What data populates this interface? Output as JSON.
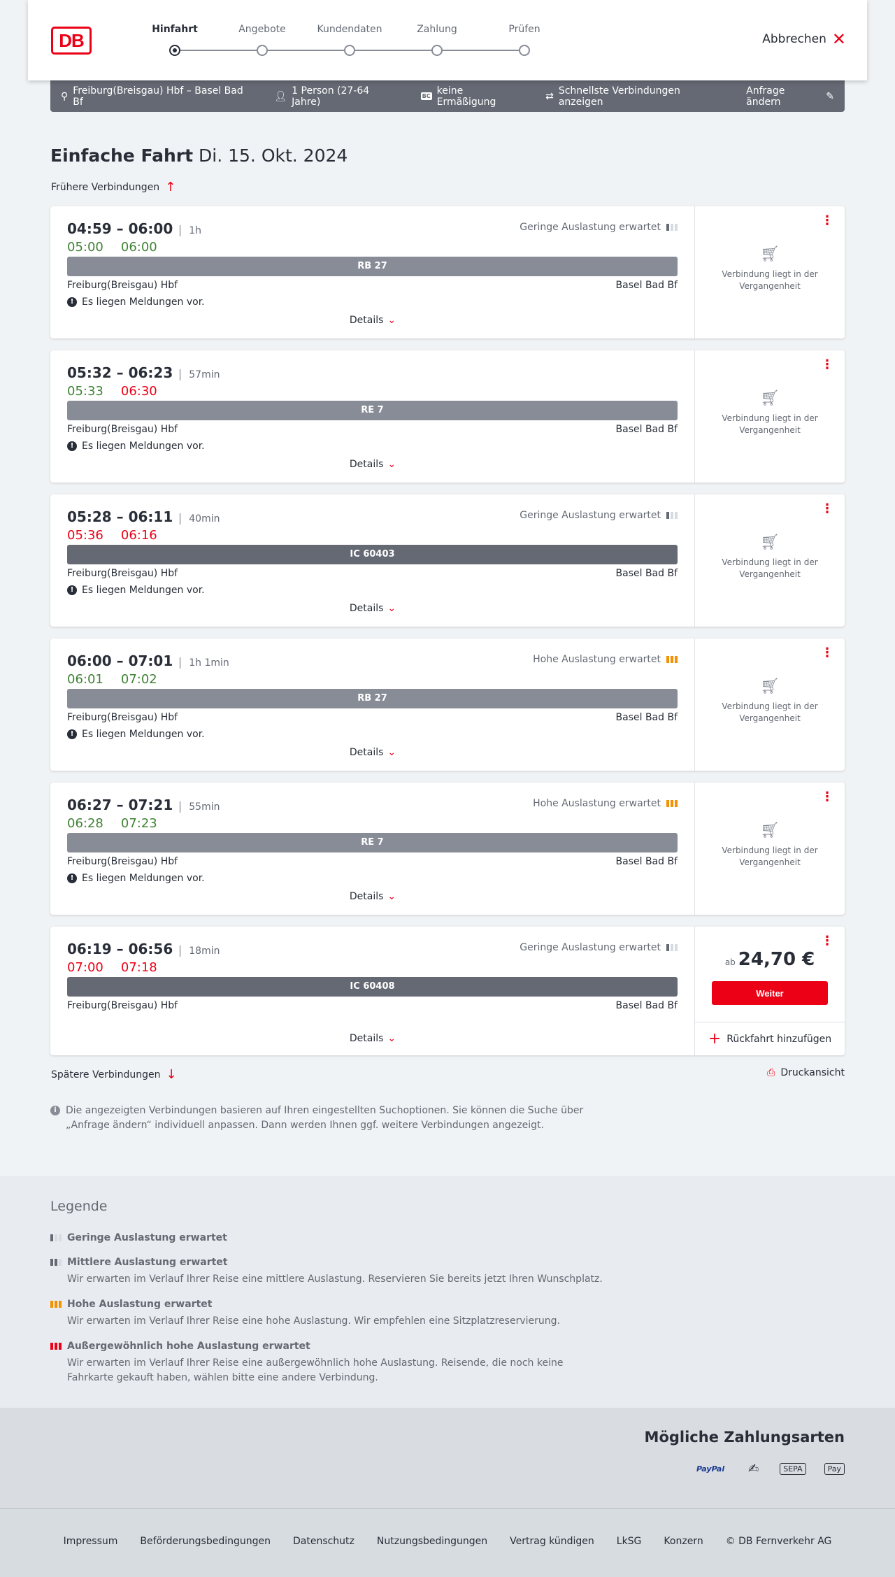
{
  "header": {
    "logo": "DB",
    "steps": [
      "Hinfahrt",
      "Angebote",
      "Kundendaten",
      "Zahlung",
      "Prüfen"
    ],
    "active_step": 0,
    "cancel": "Abbrechen"
  },
  "searchbar": {
    "route": "Freiburg(Breisgau) Hbf – Basel Bad Bf",
    "passengers": "1 Person (27-64 Jahre)",
    "discount_badge": "BC",
    "discount": "keine Ermäßigung",
    "fastest": "Schnellste Verbindungen anzeigen",
    "change": "Anfrage ändern"
  },
  "title": {
    "type": "Einfache Fahrt",
    "date": "Di. 15. Okt. 2024"
  },
  "earlier": "Frühere Verbindungen",
  "later": "Spätere Verbindungen",
  "print": "Druckansicht",
  "details_label": "Details",
  "colors": {
    "accent": "#ec0016",
    "ontime": "#408335",
    "delay": "#ec0016"
  },
  "connections": [
    {
      "times": "04:59 – 06:00",
      "duration": "1h",
      "rt_dep": "05:00",
      "rt_arr": "06:00",
      "rt_dep_late": false,
      "rt_arr_late": false,
      "occupancy": "Geringe Auslastung erwartet",
      "occ_level": "low",
      "train": "RB 27",
      "train_type": "regional",
      "from": "Freiburg(Breisgau) Hbf",
      "to": "Basel Bad Bf",
      "message": "Es liegen Meldungen vor.",
      "status": "Verbindung liegt in der Vergangenheit"
    },
    {
      "times": "05:32 – 06:23",
      "duration": "57min",
      "rt_dep": "05:33",
      "rt_arr": "06:30",
      "rt_dep_late": false,
      "rt_arr_late": true,
      "occupancy": "",
      "occ_level": "",
      "train": "RE 7",
      "train_type": "regional",
      "from": "Freiburg(Breisgau) Hbf",
      "to": "Basel Bad Bf",
      "message": "Es liegen Meldungen vor.",
      "status": "Verbindung liegt in der Vergangenheit"
    },
    {
      "times": "05:28 – 06:11",
      "duration": "40min",
      "rt_dep": "05:36",
      "rt_arr": "06:16",
      "rt_dep_late": true,
      "rt_arr_late": true,
      "occupancy": "Geringe Auslastung erwartet",
      "occ_level": "low",
      "train": "IC 60403",
      "train_type": "ic",
      "from": "Freiburg(Breisgau) Hbf",
      "to": "Basel Bad Bf",
      "message": "Es liegen Meldungen vor.",
      "status": "Verbindung liegt in der Vergangenheit"
    },
    {
      "times": "06:00 – 07:01",
      "duration": "1h 1min",
      "rt_dep": "06:01",
      "rt_arr": "07:02",
      "rt_dep_late": false,
      "rt_arr_late": false,
      "occupancy": "Hohe Auslastung erwartet",
      "occ_level": "high",
      "train": "RB 27",
      "train_type": "regional",
      "from": "Freiburg(Breisgau) Hbf",
      "to": "Basel Bad Bf",
      "message": "Es liegen Meldungen vor.",
      "status": "Verbindung liegt in der Vergangenheit"
    },
    {
      "times": "06:27 – 07:21",
      "duration": "55min",
      "rt_dep": "06:28",
      "rt_arr": "07:23",
      "rt_dep_late": false,
      "rt_arr_late": false,
      "occupancy": "Hohe Auslastung erwartet",
      "occ_level": "high",
      "train": "RE 7",
      "train_type": "regional",
      "from": "Freiburg(Breisgau) Hbf",
      "to": "Basel Bad Bf",
      "message": "Es liegen Meldungen vor.",
      "status": "Verbindung liegt in der Vergangenheit"
    },
    {
      "times": "06:19 – 06:56",
      "duration": "18min",
      "rt_dep": "07:00",
      "rt_arr": "07:18",
      "rt_dep_late": true,
      "rt_arr_late": true,
      "occupancy": "Geringe Auslastung erwartet",
      "occ_level": "low",
      "train": "IC 60408",
      "train_type": "ic",
      "from": "Freiburg(Breisgau) Hbf",
      "to": "Basel Bad Bf",
      "message": "",
      "price_prefix": "ab",
      "price": "24,70 €",
      "button": "Weiter",
      "return": "Rückfahrt hinzufügen"
    }
  ],
  "info": "Die angezeigten Verbindungen basieren auf Ihren eingestellten Suchoptionen. Sie können die Suche über „Anfrage ändern“ individuell anpassen. Dann werden Ihnen ggf. weitere Verbindungen angezeigt.",
  "legend": {
    "title": "Legende",
    "items": [
      {
        "label": "Geringe Auslastung erwartet",
        "text": "",
        "level": "low"
      },
      {
        "label": "Mittlere Auslastung erwartet",
        "text": "Wir erwarten im Verlauf Ihrer Reise eine mittlere Auslastung. Reservieren Sie bereits jetzt Ihren Wunschplatz.",
        "level": "medium"
      },
      {
        "label": "Hohe Auslastung erwartet",
        "text": "Wir erwarten im Verlauf Ihrer Reise eine hohe Auslastung. Wir empfehlen eine Sitzplatzreservierung.",
        "level": "high"
      },
      {
        "label": "Außergewöhnlich hohe Auslastung erwartet",
        "text": "Wir erwarten im Verlauf Ihrer Reise eine außergewöhnlich hohe Auslastung. Reisende, die noch keine Fahrkarte gekauft haben, wählen bitte eine andere Verbindung.",
        "level": "extreme"
      }
    ]
  },
  "payment": {
    "title": "Mögliche Zahlungsarten",
    "methods": [
      "PayPal",
      "Kreditkarte",
      "SEPA",
      "Apple Pay"
    ]
  },
  "footer": {
    "links": [
      "Impressum",
      "Beförderungsbedingungen",
      "Datenschutz",
      "Nutzungsbedingungen",
      "Vertrag kündigen",
      "LkSG",
      "Konzern",
      "© DB Fernverkehr AG"
    ]
  }
}
